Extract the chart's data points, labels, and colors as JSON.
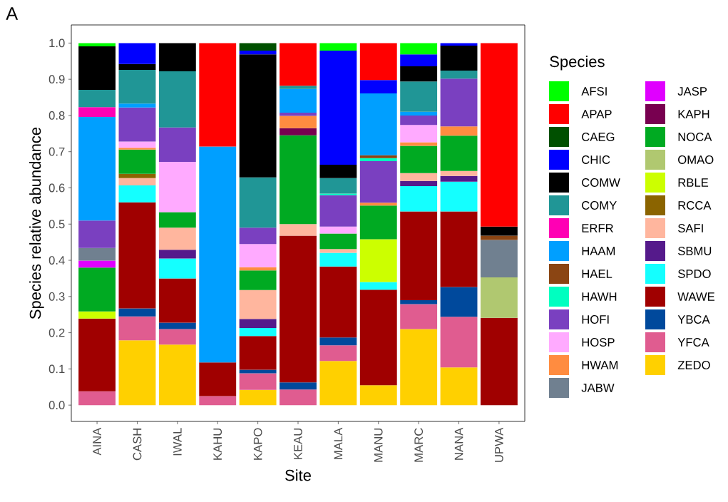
{
  "chart_data": {
    "type": "bar",
    "stacked": true,
    "annotations": [
      "A"
    ],
    "xlabel": "Site",
    "ylabel": "Species relative abundance",
    "legend_title": "Species",
    "legend": "right",
    "grid": false,
    "categories": [
      "AINA",
      "CASH",
      "IWAL",
      "KAHU",
      "KAPO",
      "KEAU",
      "MALA",
      "MANU",
      "MARC",
      "NANA",
      "UPWA"
    ],
    "ylim": [
      -0.045,
      1.05
    ],
    "yticks": [
      {
        "value": 0,
        "label": "0.0"
      },
      {
        "value": 0.1,
        "label": "0.1"
      },
      {
        "value": 0.2,
        "label": "0.2"
      },
      {
        "value": 0.3,
        "label": "0.3"
      },
      {
        "value": 0.4,
        "label": "0.4"
      },
      {
        "value": 0.5,
        "label": "0.5"
      },
      {
        "value": 0.6,
        "label": "0.6"
      },
      {
        "value": 0.7,
        "label": "0.7"
      },
      {
        "value": 0.8,
        "label": "0.8"
      },
      {
        "value": 0.9,
        "label": "0.9"
      },
      {
        "value": 1.0,
        "label": "1.0"
      }
    ],
    "series": [
      {
        "name": "ZEDO",
        "color": "#ffd000",
        "values": [
          null,
          0.179,
          0.167,
          null,
          0.042,
          null,
          0.122,
          0.055,
          0.21,
          0.104,
          null
        ]
      },
      {
        "name": "YFCA",
        "color": "#e05c90",
        "values": [
          0.038,
          0.066,
          0.043,
          0.025,
          0.046,
          0.043,
          0.043,
          null,
          0.069,
          0.14,
          null
        ]
      },
      {
        "name": "YBCA",
        "color": "#00499c",
        "values": [
          null,
          0.022,
          0.018,
          null,
          0.01,
          0.02,
          0.022,
          null,
          0.011,
          0.082,
          null
        ]
      },
      {
        "name": "WAWE",
        "color": "#a00000",
        "values": [
          0.201,
          0.293,
          0.122,
          0.093,
          0.093,
          0.405,
          0.196,
          0.264,
          0.245,
          0.209,
          0.241
        ]
      },
      {
        "name": "SPDO",
        "color": "#14ffff",
        "values": [
          null,
          0.047,
          0.055,
          null,
          0.022,
          null,
          0.038,
          0.021,
          0.07,
          0.082,
          null
        ]
      },
      {
        "name": "SBMU",
        "color": "#551a8b",
        "values": [
          null,
          null,
          0.024,
          null,
          0.025,
          null,
          null,
          null,
          0.014,
          0.016,
          null
        ]
      },
      {
        "name": "SAFI",
        "color": "#ffb69e",
        "values": [
          null,
          0.02,
          0.061,
          null,
          0.08,
          0.032,
          0.01,
          null,
          0.022,
          0.014,
          null
        ]
      },
      {
        "name": "RCCA",
        "color": "#8b6400",
        "values": [
          null,
          0.012,
          null,
          null,
          null,
          null,
          null,
          null,
          null,
          null,
          null
        ]
      },
      {
        "name": "RBLE",
        "color": "#ccff00",
        "values": [
          0.02,
          null,
          null,
          null,
          null,
          null,
          null,
          0.118,
          null,
          null,
          null
        ]
      },
      {
        "name": "OMAO",
        "color": "#b0c870",
        "values": [
          null,
          null,
          null,
          null,
          null,
          null,
          null,
          null,
          null,
          null,
          0.112
        ]
      },
      {
        "name": "NOCA",
        "color": "#00aa22",
        "values": [
          0.121,
          0.067,
          0.043,
          null,
          0.054,
          0.245,
          0.043,
          0.093,
          0.075,
          0.097,
          null
        ]
      },
      {
        "name": "KAPH",
        "color": "#780050",
        "values": [
          null,
          null,
          null,
          null,
          null,
          0.02,
          null,
          null,
          null,
          null,
          null
        ]
      },
      {
        "name": "JASP",
        "color": "#e000ff",
        "values": [
          0.019,
          null,
          null,
          null,
          null,
          null,
          null,
          null,
          null,
          null,
          null
        ]
      },
      {
        "name": "JABW",
        "color": "#708090",
        "values": [
          0.035,
          null,
          null,
          null,
          null,
          null,
          null,
          null,
          null,
          null,
          0.103
        ]
      },
      {
        "name": "HWAM",
        "color": "#ff8c40",
        "values": [
          null,
          0.005,
          null,
          null,
          0.009,
          0.034,
          null,
          0.008,
          0.01,
          0.026,
          null
        ]
      },
      {
        "name": "HOSP",
        "color": "#ffaaff",
        "values": [
          null,
          0.017,
          0.139,
          null,
          0.064,
          null,
          0.019,
          null,
          0.048,
          null,
          null
        ]
      },
      {
        "name": "HOFI",
        "color": "#7a40c0",
        "values": [
          0.076,
          0.094,
          0.095,
          null,
          0.045,
          0.009,
          0.087,
          0.115,
          0.026,
          0.132,
          null
        ]
      },
      {
        "name": "HAWH",
        "color": "#00ffc0",
        "values": [
          null,
          null,
          null,
          null,
          null,
          null,
          0.004,
          0.008,
          null,
          null,
          null
        ]
      },
      {
        "name": "HAEL",
        "color": "#8b4513",
        "values": [
          null,
          null,
          null,
          null,
          null,
          null,
          null,
          0.008,
          null,
          null,
          0.012
        ]
      },
      {
        "name": "HAAM",
        "color": "#009fff",
        "values": [
          0.286,
          0.011,
          null,
          0.596,
          null,
          0.065,
          null,
          0.171,
          0.01,
          null,
          null
        ]
      },
      {
        "name": "ERFR",
        "color": "#ff00b4",
        "values": [
          0.027,
          null,
          null,
          null,
          null,
          null,
          null,
          null,
          null,
          null,
          null
        ]
      },
      {
        "name": "COMY",
        "color": "#209696",
        "values": [
          0.048,
          0.093,
          0.155,
          null,
          0.139,
          0.009,
          0.043,
          null,
          0.084,
          0.022,
          null
        ]
      },
      {
        "name": "COMW",
        "color": "#000000",
        "values": [
          0.12,
          0.016,
          0.078,
          null,
          0.34,
          null,
          0.037,
          null,
          0.042,
          0.069,
          0.025
        ]
      },
      {
        "name": "CHIC",
        "color": "#0000ff",
        "values": [
          null,
          0.058,
          null,
          null,
          0.01,
          null,
          0.315,
          0.037,
          0.033,
          0.007,
          null
        ]
      },
      {
        "name": "CAEG",
        "color": "#005000",
        "values": [
          null,
          null,
          null,
          null,
          0.021,
          null,
          null,
          null,
          null,
          null,
          null
        ]
      },
      {
        "name": "APAP",
        "color": "#ff0000",
        "values": [
          null,
          null,
          null,
          0.286,
          null,
          0.118,
          null,
          0.102,
          null,
          null,
          0.507
        ]
      },
      {
        "name": "AFSI",
        "color": "#00ff00",
        "values": [
          0.009,
          null,
          null,
          null,
          null,
          null,
          0.021,
          null,
          0.031,
          null,
          null
        ]
      }
    ]
  }
}
